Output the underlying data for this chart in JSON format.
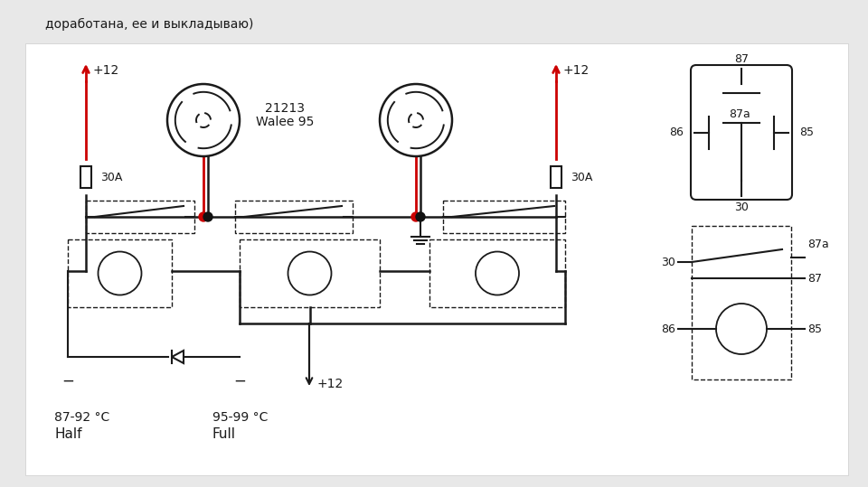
{
  "bg_color": "#e8e8e8",
  "diagram_bg": "#ffffff",
  "title_text": "доработана, ее и выкладываю)",
  "label_21213": "21213",
  "label_walee": "Walee 95",
  "label_plus12_left": "+12",
  "label_plus12_right": "+12",
  "label_plus12_bottom": "+12",
  "label_30A_left": "30A",
  "label_30A_right": "30A",
  "label_temp1": "87-92 °C",
  "label_mode1": "Half",
  "label_temp2": "95-99 °C",
  "label_mode2": "Full",
  "line_color": "#1a1a1a",
  "red_color": "#cc0000",
  "dot_red": "#cc0000",
  "dot_black": "#111111"
}
